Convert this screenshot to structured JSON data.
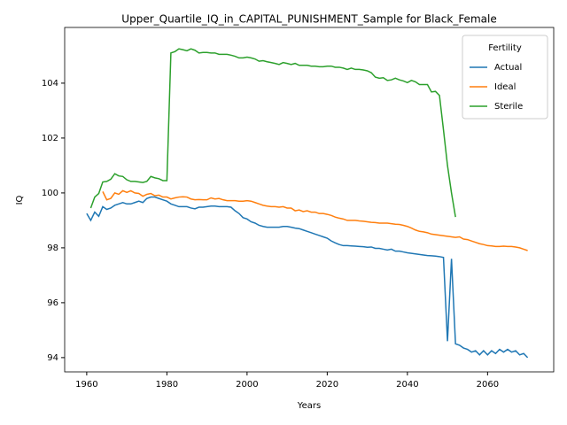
{
  "chart_data": {
    "type": "line",
    "title": "Upper_Quartile_IQ_in_CAPITAL_PUNISHMENT_Sample for Black_Female",
    "xlabel": "Years",
    "ylabel": "IQ",
    "legend_title": "Fertility",
    "legend": "upper right",
    "x": [
      1960,
      1961,
      1962,
      1963,
      1964,
      1965,
      1966,
      1967,
      1968,
      1969,
      1970,
      1971,
      1972,
      1973,
      1974,
      1975,
      1976,
      1977,
      1978,
      1979,
      1980,
      1981,
      1982,
      1983,
      1984,
      1985,
      1986,
      1987,
      1988,
      1989,
      1990,
      1991,
      1992,
      1993,
      1994,
      1995,
      1996,
      1997,
      1998,
      1999,
      2000,
      2001,
      2002,
      2003,
      2004,
      2005,
      2006,
      2007,
      2008,
      2009,
      2010,
      2011,
      2012,
      2013,
      2014,
      2015,
      2016,
      2017,
      2018,
      2019,
      2020,
      2021,
      2022,
      2023,
      2024,
      2025,
      2026,
      2027,
      2028,
      2029,
      2030,
      2031,
      2032,
      2033,
      2034,
      2035,
      2036,
      2037,
      2038,
      2039,
      2040,
      2041,
      2042,
      2043,
      2044,
      2045,
      2046,
      2047,
      2048,
      2049,
      2050,
      2051,
      2052,
      2053,
      2054,
      2055,
      2056,
      2057,
      2058,
      2059,
      2060,
      2061,
      2062,
      2063,
      2064,
      2065,
      2066,
      2067,
      2068,
      2069,
      2070
    ],
    "series": [
      {
        "name": "Actual",
        "color": "#1f77b4",
        "values": [
          99.25,
          99.0,
          99.3,
          99.15,
          99.5,
          99.4,
          99.45,
          99.55,
          99.6,
          99.65,
          99.6,
          99.6,
          99.65,
          99.7,
          99.65,
          99.8,
          99.85,
          99.85,
          99.8,
          99.75,
          99.7,
          99.6,
          99.55,
          99.5,
          99.5,
          99.5,
          99.45,
          99.42,
          99.48,
          99.48,
          99.5,
          99.52,
          99.52,
          99.5,
          99.5,
          99.5,
          99.48,
          99.35,
          99.25,
          99.1,
          99.05,
          98.95,
          98.9,
          98.82,
          98.78,
          98.75,
          98.75,
          98.75,
          98.75,
          98.78,
          98.78,
          98.75,
          98.72,
          98.7,
          98.65,
          98.6,
          98.55,
          98.5,
          98.45,
          98.4,
          98.35,
          98.25,
          98.18,
          98.12,
          98.08,
          98.08,
          98.07,
          98.06,
          98.05,
          98.04,
          98.02,
          98.03,
          97.98,
          97.98,
          97.95,
          97.92,
          97.95,
          97.88,
          97.88,
          97.85,
          97.82,
          97.8,
          97.78,
          97.76,
          97.74,
          97.72,
          97.71,
          97.7,
          97.68,
          97.65,
          94.6,
          97.6,
          94.5,
          94.45,
          94.35,
          94.3,
          94.2,
          94.25,
          94.1,
          94.25,
          94.1,
          94.25,
          94.15,
          94.3,
          94.2,
          94.3,
          94.2,
          94.25,
          94.1,
          94.15,
          94.0
        ]
      },
      {
        "name": "Ideal",
        "color": "#ff7f0e",
        "values": [
          null,
          null,
          null,
          null,
          100.05,
          99.75,
          99.8,
          100.0,
          99.95,
          100.08,
          100.02,
          100.08,
          100.0,
          99.98,
          99.88,
          99.95,
          99.98,
          99.9,
          99.92,
          99.85,
          99.85,
          99.78,
          99.82,
          99.85,
          99.86,
          99.85,
          99.78,
          99.75,
          99.76,
          99.75,
          99.75,
          99.82,
          99.78,
          99.8,
          99.75,
          99.72,
          99.72,
          99.72,
          99.7,
          99.7,
          99.72,
          99.7,
          99.65,
          99.6,
          99.55,
          99.52,
          99.5,
          99.5,
          99.48,
          99.5,
          99.45,
          99.45,
          99.35,
          99.38,
          99.32,
          99.35,
          99.3,
          99.3,
          99.25,
          99.25,
          99.22,
          99.18,
          99.12,
          99.08,
          99.05,
          99.0,
          99.0,
          99.0,
          98.98,
          98.97,
          98.95,
          98.93,
          98.92,
          98.9,
          98.9,
          98.9,
          98.88,
          98.86,
          98.85,
          98.82,
          98.78,
          98.72,
          98.65,
          98.6,
          98.58,
          98.55,
          98.5,
          98.48,
          98.46,
          98.44,
          98.42,
          98.4,
          98.38,
          98.4,
          98.32,
          98.3,
          98.25,
          98.2,
          98.15,
          98.12,
          98.08,
          98.07,
          98.05,
          98.05,
          98.06,
          98.05,
          98.05,
          98.03,
          98.0,
          97.95,
          97.9
        ]
      },
      {
        "name": "Sterile",
        "color": "#2ca02c",
        "values": [
          null,
          99.45,
          99.85,
          99.98,
          100.4,
          100.42,
          100.5,
          100.7,
          100.62,
          100.6,
          100.48,
          100.42,
          100.42,
          100.4,
          100.38,
          100.42,
          100.6,
          100.55,
          100.52,
          100.45,
          100.45,
          105.1,
          105.15,
          105.25,
          105.22,
          105.18,
          105.25,
          105.2,
          105.1,
          105.12,
          105.12,
          105.1,
          105.1,
          105.05,
          105.05,
          105.05,
          105.02,
          104.98,
          104.92,
          104.92,
          104.95,
          104.92,
          104.88,
          104.8,
          104.82,
          104.78,
          104.75,
          104.72,
          104.68,
          104.75,
          104.72,
          104.68,
          104.72,
          104.65,
          104.65,
          104.65,
          104.62,
          104.62,
          104.6,
          104.6,
          104.62,
          104.62,
          104.58,
          104.58,
          104.55,
          104.5,
          104.55,
          104.5,
          104.5,
          104.48,
          104.45,
          104.38,
          104.22,
          104.18,
          104.2,
          104.1,
          104.12,
          104.18,
          104.12,
          104.08,
          104.02,
          104.1,
          104.05,
          103.95,
          103.95,
          103.95,
          103.68,
          103.7,
          103.55,
          102.3,
          101.0,
          100.0,
          99.12,
          null,
          null,
          null,
          null,
          null,
          null,
          null,
          null,
          null,
          null,
          null,
          null,
          null,
          null,
          null,
          null,
          null,
          null
        ]
      }
    ],
    "xlim": [
      1954.5,
      2076.5
    ],
    "xticks": [
      1960,
      1980,
      2000,
      2020,
      2040,
      2060
    ],
    "ylim": [
      93.48,
      106.03
    ],
    "yticks": [
      94,
      96,
      98,
      100,
      102,
      104
    ],
    "grid": false
  }
}
